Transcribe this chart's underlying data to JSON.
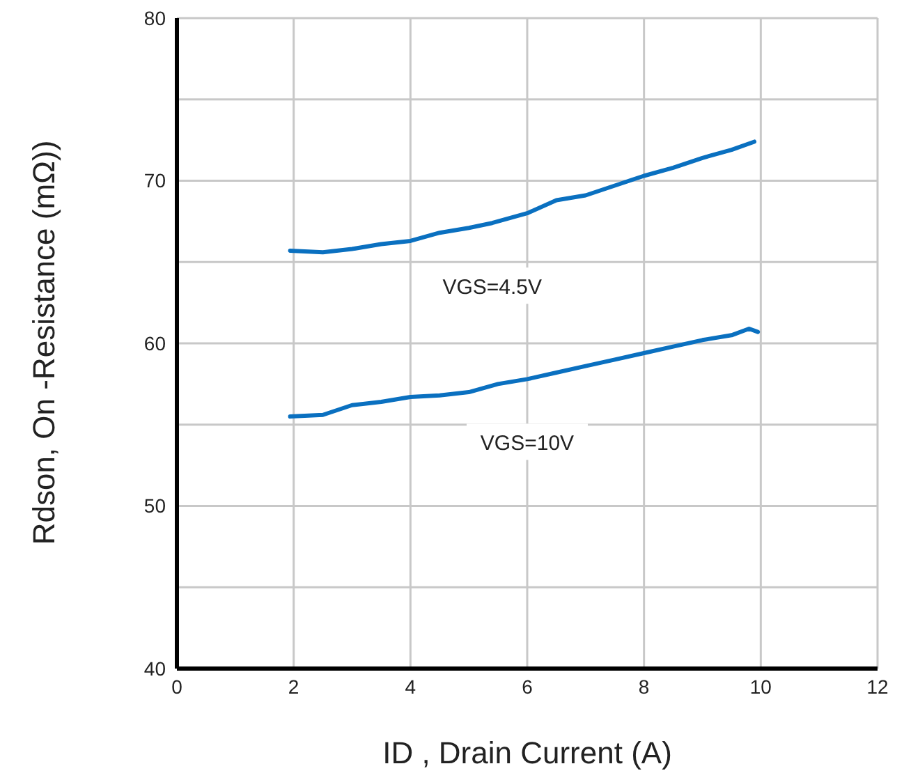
{
  "chart_data": {
    "type": "line",
    "xlabel": "ID , Drain Current (A)",
    "ylabel": "Rdson, On -Resistance (mΩ))",
    "xlim": [
      0,
      12
    ],
    "xticks": [
      0,
      2,
      4,
      6,
      8,
      10,
      12
    ],
    "ylim": [
      40,
      80
    ],
    "yticks": [
      40,
      {
        "value": 45,
        "label": null
      },
      50,
      {
        "value": 55,
        "label": null
      },
      60,
      {
        "value": 65,
        "label": null
      },
      70,
      {
        "value": 75,
        "label": null
      },
      80
    ],
    "grid": true,
    "marker": "none",
    "line_style": "solid",
    "series": [
      {
        "name": "VGS=4.5V",
        "color": "#0a70c0",
        "x": [
          1.94,
          2.5,
          3,
          3.5,
          4,
          4.5,
          5,
          5.4,
          6,
          6.5,
          7,
          7.5,
          8,
          8.5,
          9,
          9.5,
          9.89
        ],
        "values": [
          65.7,
          65.6,
          65.8,
          66.1,
          66.3,
          66.8,
          67.1,
          67.4,
          68.0,
          68.8,
          69.1,
          69.7,
          70.3,
          70.8,
          71.4,
          71.9,
          72.4
        ]
      },
      {
        "name": "VGS=10V",
        "color": "#0a70c0",
        "x": [
          1.94,
          2.5,
          3,
          3.5,
          4,
          4.5,
          5,
          5.5,
          6,
          6.5,
          7,
          7.5,
          8,
          8.5,
          9,
          9.5,
          9.8,
          9.95
        ],
        "values": [
          55.5,
          55.6,
          56.2,
          56.4,
          56.7,
          56.8,
          57.0,
          57.5,
          57.8,
          58.2,
          58.6,
          59.0,
          59.4,
          59.8,
          60.2,
          60.5,
          60.9,
          60.7
        ]
      }
    ]
  }
}
